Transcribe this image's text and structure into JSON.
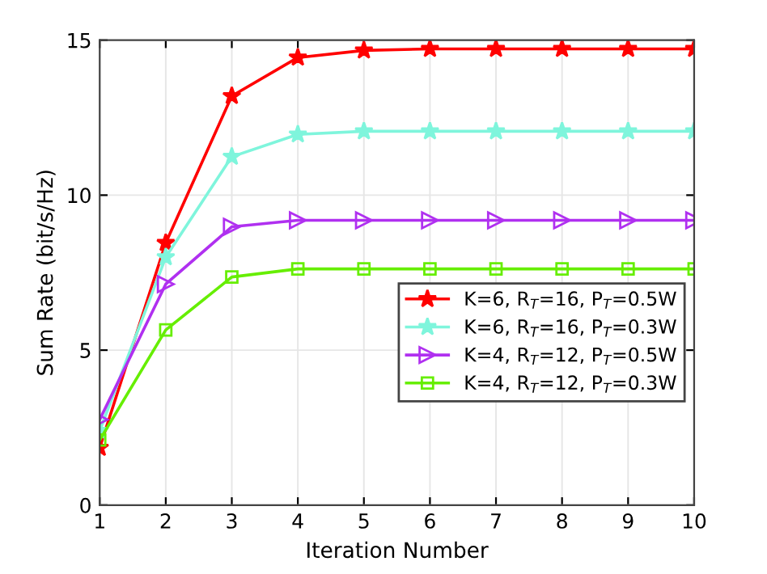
{
  "chart_data": {
    "type": "line",
    "xlabel": "Iteration Number",
    "ylabel": "Sum Rate (bit/s/Hz)",
    "x": [
      1,
      2,
      3,
      4,
      5,
      6,
      7,
      8,
      9,
      10
    ],
    "series": [
      {
        "name": "K=6, R$_{T}$=16, P$_{T}$=0.5W",
        "color": "#ff0000",
        "marker": "star",
        "values": [
          1.85,
          8.46,
          13.2,
          14.44,
          14.67,
          14.72,
          14.72,
          14.72,
          14.72,
          14.72
        ]
      },
      {
        "name": "K=6, R$_{T}$=16, P$_{T}$=0.3W",
        "color": "#7ff5dc",
        "marker": "star",
        "values": [
          2.4,
          8.0,
          11.24,
          11.96,
          12.06,
          12.06,
          12.06,
          12.06,
          12.06,
          12.06
        ]
      },
      {
        "name": "K=4, R$_{T}$=12, P$_{T}$=0.5W",
        "color": "#b030f0",
        "marker": "triangle",
        "values": [
          2.76,
          7.13,
          8.98,
          9.19,
          9.19,
          9.19,
          9.19,
          9.19,
          9.19,
          9.19
        ]
      },
      {
        "name": "K=4, R$_{T}$=12, P$_{T}$=0.3W",
        "color": "#66ee00",
        "marker": "square",
        "values": [
          2.1,
          5.65,
          7.36,
          7.62,
          7.62,
          7.62,
          7.62,
          7.62,
          7.62,
          7.62
        ]
      }
    ],
    "xlim": [
      1,
      10
    ],
    "ylim": [
      0,
      15
    ],
    "xticks": [
      1,
      2,
      3,
      4,
      5,
      6,
      7,
      8,
      9,
      10
    ],
    "yticks": [
      0,
      5,
      10,
      15
    ],
    "grid": true,
    "legend": "right",
    "line_style": "solid"
  }
}
